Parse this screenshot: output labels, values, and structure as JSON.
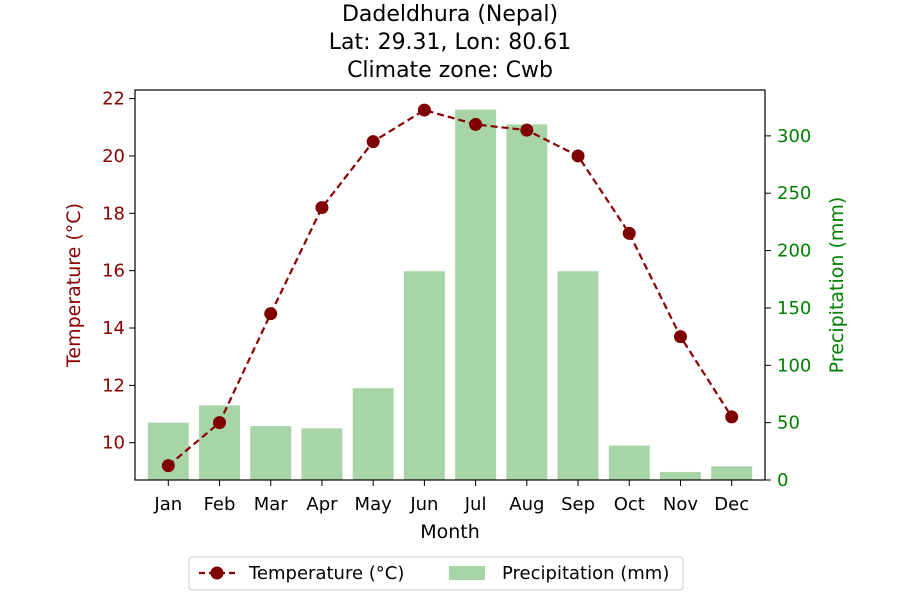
{
  "chart_data": {
    "type": "bar+line",
    "title_lines": [
      "Dadeldhura (Nepal)",
      "Lat: 29.31, Lon: 80.61",
      "Climate zone: Cwb"
    ],
    "xlabel": "Month",
    "categories": [
      "Jan",
      "Feb",
      "Mar",
      "Apr",
      "May",
      "Jun",
      "Jul",
      "Aug",
      "Sep",
      "Oct",
      "Nov",
      "Dec"
    ],
    "temperature": {
      "name": "Temperature (°C)",
      "axis_label": "Temperature (°C)",
      "color": "#8b0000",
      "values": [
        9.2,
        10.7,
        14.5,
        18.2,
        20.5,
        21.6,
        21.1,
        20.9,
        20.0,
        17.3,
        13.7,
        10.9
      ],
      "ylim": [
        8.7,
        22.3
      ],
      "ticks": [
        10,
        12,
        14,
        16,
        18,
        20,
        22
      ]
    },
    "precipitation": {
      "name": "Precipitation (mm)",
      "axis_label": "Precipitation (mm)",
      "color": "#a8d5a8",
      "axis_color": "#008000",
      "values": [
        50,
        65,
        47,
        45,
        80,
        182,
        323,
        310,
        182,
        30,
        7,
        12
      ],
      "ylim": [
        0,
        340
      ],
      "ticks": [
        0,
        50,
        100,
        150,
        200,
        250,
        300
      ]
    },
    "legend": {
      "placement": "bottom-center",
      "entries": [
        "Temperature (°C)",
        "Precipitation (mm)"
      ]
    }
  }
}
